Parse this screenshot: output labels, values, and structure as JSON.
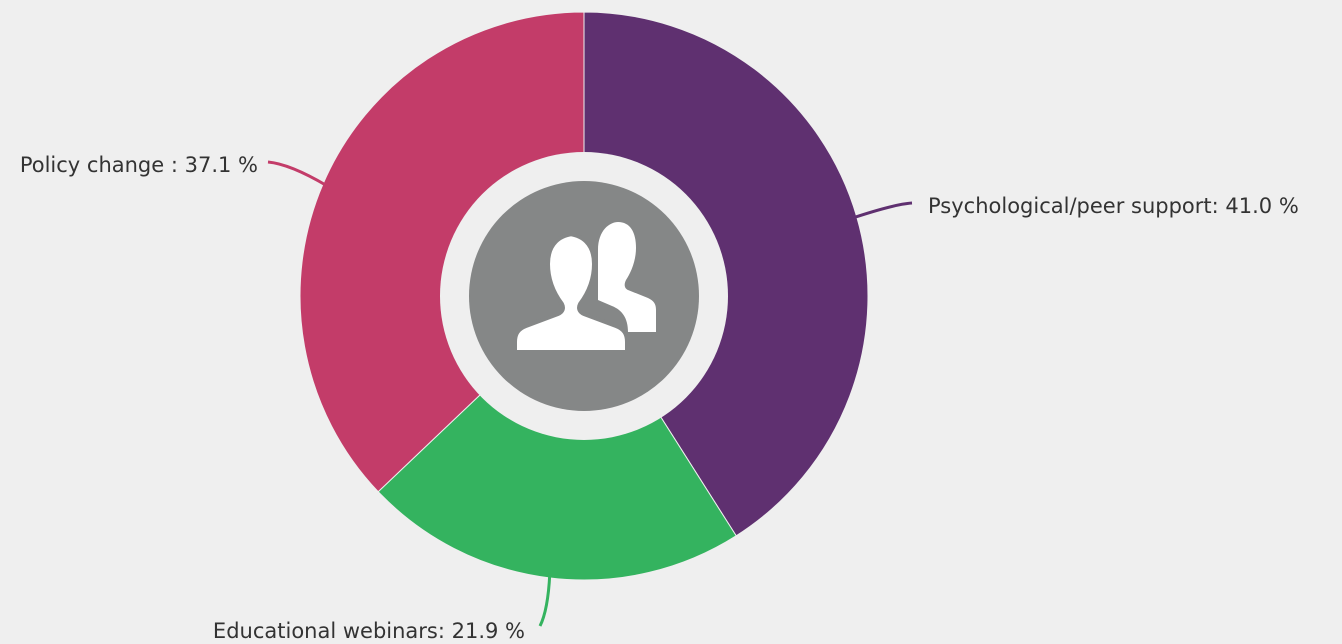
{
  "chart_data": {
    "type": "donut",
    "values": [
      41.0,
      21.9,
      37.1
    ],
    "value_labels": [
      "Psychological/peer support: 41.0 %",
      "Educational webinars: 21.9 %",
      "Policy change : 37.1 %"
    ],
    "colors": [
      "#5f3070",
      "#34b35f",
      "#c33c69"
    ]
  }
}
